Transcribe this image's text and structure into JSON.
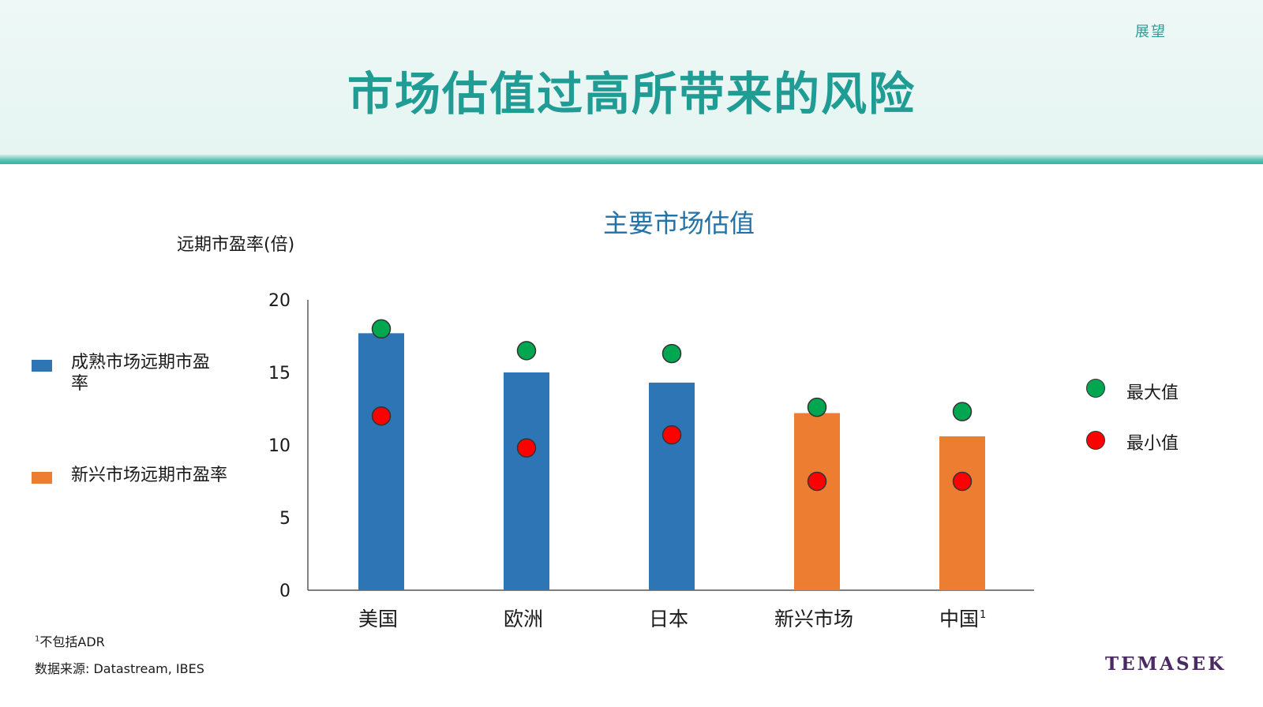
{
  "header": {
    "corner_label": "展望",
    "title": "市场估值过高所带来的风险"
  },
  "legend_left": [
    {
      "label": "成熟市场远期市盈率",
      "color": "#2e75b6"
    },
    {
      "label": "新兴市场远期市盈率",
      "color": "#ed7d31"
    }
  ],
  "legend_right": [
    {
      "label": "最大值",
      "color": "#00a650"
    },
    {
      "label": "最小值",
      "color": "#ff0000"
    }
  ],
  "footnotes": {
    "note_mark": "1",
    "note": "不包括ADR",
    "source": "数据来源: Datastream, IBES"
  },
  "brand": "TEMASEK",
  "chart_data": {
    "type": "bar",
    "title": "主要市场估值",
    "ylabel": "远期市盈率(倍)",
    "ylim": [
      0,
      20
    ],
    "yticks": [
      0,
      5,
      10,
      15,
      20
    ],
    "categories": [
      "美国",
      "欧洲",
      "日本",
      "新兴市场",
      "中国"
    ],
    "category_superscripts": [
      "",
      "",
      "",
      "",
      "1"
    ],
    "bar_colors": [
      "#2e75b6",
      "#2e75b6",
      "#2e75b6",
      "#ed7d31",
      "#ed7d31"
    ],
    "series": [
      {
        "name": "成熟市场远期市盈率",
        "values": [
          17.7,
          15.0,
          14.3,
          null,
          null
        ]
      },
      {
        "name": "新兴市场远期市盈率",
        "values": [
          null,
          null,
          null,
          12.2,
          10.6
        ]
      },
      {
        "name": "最大值",
        "values": [
          18.0,
          16.5,
          16.3,
          12.6,
          12.3
        ]
      },
      {
        "name": "最小值",
        "values": [
          12.0,
          9.8,
          10.7,
          7.5,
          7.5
        ]
      }
    ]
  }
}
